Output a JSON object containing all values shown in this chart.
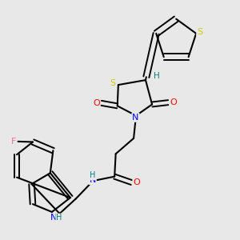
{
  "bg_color": "#e8e8e8",
  "atom_colors": {
    "C": "#000000",
    "N": "#0000ff",
    "O": "#ff0000",
    "S": "#cccc00",
    "F": "#ff69b4",
    "H": "#008080"
  }
}
